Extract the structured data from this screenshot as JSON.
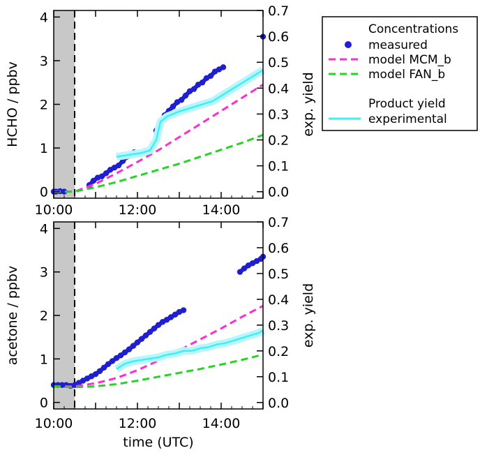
{
  "chart_data": [
    {
      "type": "scatter",
      "panel": "top",
      "ylabel": "HCHO / ppbv",
      "y2label": "exp. yield",
      "xlim": [
        10.0,
        15.0
      ],
      "ylim": [
        -0.15,
        4.15
      ],
      "y2lim": [
        -0.025,
        0.7
      ],
      "x_ticks": [
        10,
        11,
        12,
        13,
        14,
        15
      ],
      "x_tick_labels": [
        "10:00",
        "12:00",
        "14:00"
      ],
      "y_tick_labels": [
        "0",
        "1",
        "2",
        "3",
        "4"
      ],
      "y2_tick_labels": [
        "0.0",
        "0.1",
        "0.2",
        "0.3",
        "0.4",
        "0.5",
        "0.6",
        "0.7"
      ],
      "shaded_region": [
        10.0,
        10.5
      ],
      "dashed_vline": 10.5,
      "series": [
        {
          "name": "measured",
          "style": "points",
          "color": "#1f1fd0",
          "axis": "left",
          "segments": [
            {
              "x": [
                10.0,
                10.05,
                10.15,
                10.25
              ],
              "y": [
                0.0,
                0.0,
                0.01,
                0.0
              ]
            },
            {
              "x": [
                10.85,
                10.95,
                11.05,
                11.15,
                11.25,
                11.35,
                11.45,
                11.55,
                11.65,
                11.75,
                11.85,
                11.92
              ],
              "y": [
                0.15,
                0.25,
                0.32,
                0.35,
                0.42,
                0.5,
                0.55,
                0.6,
                0.7,
                0.8,
                0.85,
                0.9
              ]
            },
            {
              "x": [
                12.45,
                12.55,
                12.65,
                12.75,
                12.85,
                12.95,
                13.05,
                13.15,
                13.25,
                13.35,
                13.45,
                13.55,
                13.65,
                13.75,
                13.85,
                13.95,
                14.05
              ],
              "y": [
                1.4,
                1.55,
                1.75,
                1.85,
                1.95,
                2.05,
                2.1,
                2.2,
                2.3,
                2.35,
                2.45,
                2.5,
                2.6,
                2.65,
                2.75,
                2.8,
                2.85
              ]
            },
            {
              "x": [
                15.0
              ],
              "y": [
                3.55
              ]
            }
          ]
        },
        {
          "name": "model MCM_b",
          "style": "dashed",
          "color": "#ff2cd5",
          "axis": "left",
          "x": [
            10.0,
            10.5,
            11.0,
            11.5,
            12.0,
            12.5,
            13.0,
            13.5,
            14.0,
            14.5,
            15.0
          ],
          "y": [
            0.0,
            0.0,
            0.18,
            0.42,
            0.68,
            0.95,
            1.25,
            1.55,
            1.85,
            2.15,
            2.45
          ]
        },
        {
          "name": "model FAN_b",
          "style": "dashed",
          "color": "#22d622",
          "axis": "left",
          "x": [
            10.0,
            10.5,
            11.0,
            11.5,
            12.0,
            12.5,
            13.0,
            13.5,
            14.0,
            14.5,
            15.0
          ],
          "y": [
            0.0,
            0.0,
            0.1,
            0.22,
            0.36,
            0.5,
            0.64,
            0.8,
            0.96,
            1.12,
            1.3
          ]
        },
        {
          "name": "experimental",
          "style": "line",
          "color": "#3cf0f8",
          "axis": "right",
          "x": [
            11.5,
            11.7,
            11.9,
            12.1,
            12.3,
            12.45,
            12.55,
            12.7,
            12.85,
            13.0,
            13.2,
            13.4,
            13.6,
            13.8,
            14.0,
            14.2,
            14.4,
            14.6,
            14.8,
            15.0
          ],
          "y": [
            0.135,
            0.14,
            0.145,
            0.15,
            0.16,
            0.2,
            0.27,
            0.29,
            0.3,
            0.31,
            0.32,
            0.33,
            0.34,
            0.35,
            0.37,
            0.39,
            0.41,
            0.43,
            0.45,
            0.47
          ]
        }
      ]
    },
    {
      "type": "scatter",
      "panel": "bottom",
      "ylabel": "acetone / ppbv",
      "y2label": "exp. yield",
      "xlabel": "time (UTC)",
      "xlim": [
        10.0,
        15.0
      ],
      "ylim": [
        -0.15,
        4.15
      ],
      "y2lim": [
        -0.025,
        0.7
      ],
      "x_ticks": [
        10,
        11,
        12,
        13,
        14,
        15
      ],
      "x_tick_labels": [
        "10:00",
        "12:00",
        "14:00"
      ],
      "y_tick_labels": [
        "0",
        "1",
        "2",
        "3",
        "4"
      ],
      "y2_tick_labels": [
        "0.0",
        "0.1",
        "0.2",
        "0.3",
        "0.4",
        "0.5",
        "0.6",
        "0.7"
      ],
      "shaded_region": [
        10.0,
        10.5
      ],
      "dashed_vline": 10.5,
      "series": [
        {
          "name": "measured",
          "style": "points",
          "color": "#1f1fd0",
          "axis": "left",
          "segments": [
            {
              "x": [
                10.0,
                10.1,
                10.2,
                10.3,
                10.4,
                10.5,
                10.6,
                10.7,
                10.8,
                10.9,
                11.0,
                11.1,
                11.2,
                11.3,
                11.4,
                11.5,
                11.6,
                11.7,
                11.8,
                11.9,
                12.0,
                12.1,
                12.2,
                12.3,
                12.4,
                12.5,
                12.6,
                12.7,
                12.8,
                12.9,
                13.0,
                13.1
              ],
              "y": [
                0.4,
                0.4,
                0.4,
                0.4,
                0.38,
                0.4,
                0.45,
                0.5,
                0.55,
                0.6,
                0.65,
                0.72,
                0.8,
                0.88,
                0.95,
                1.02,
                1.08,
                1.15,
                1.22,
                1.3,
                1.38,
                1.46,
                1.54,
                1.62,
                1.7,
                1.78,
                1.85,
                1.9,
                1.96,
                2.02,
                2.08,
                2.12
              ]
            },
            {
              "x": [
                14.45,
                14.55,
                14.65,
                14.75,
                14.85,
                14.95,
                15.0
              ],
              "y": [
                3.0,
                3.08,
                3.15,
                3.2,
                3.25,
                3.3,
                3.35
              ]
            }
          ]
        },
        {
          "name": "model MCM_b",
          "style": "dashed",
          "color": "#ff2cd5",
          "axis": "left",
          "x": [
            10.0,
            10.5,
            11.0,
            11.5,
            12.0,
            12.5,
            13.0,
            13.5,
            14.0,
            14.5,
            15.0
          ],
          "y": [
            0.37,
            0.37,
            0.44,
            0.56,
            0.74,
            0.96,
            1.2,
            1.45,
            1.7,
            1.97,
            2.22
          ]
        },
        {
          "name": "model FAN_b",
          "style": "dashed",
          "color": "#22d622",
          "axis": "left",
          "x": [
            10.0,
            10.5,
            11.0,
            11.5,
            12.0,
            12.5,
            13.0,
            13.5,
            14.0,
            14.5,
            15.0
          ],
          "y": [
            0.37,
            0.35,
            0.37,
            0.42,
            0.5,
            0.59,
            0.68,
            0.77,
            0.87,
            0.98,
            1.1
          ]
        },
        {
          "name": "experimental",
          "style": "line",
          "color": "#3cf0f8",
          "axis": "right",
          "x": [
            11.5,
            11.7,
            11.9,
            12.1,
            12.3,
            12.5,
            12.7,
            12.9,
            13.1,
            13.3,
            13.5,
            13.7,
            13.9,
            14.1,
            14.3,
            14.5,
            14.7,
            14.9,
            15.0
          ],
          "y": [
            0.13,
            0.15,
            0.16,
            0.165,
            0.17,
            0.175,
            0.185,
            0.19,
            0.2,
            0.2,
            0.21,
            0.215,
            0.225,
            0.23,
            0.24,
            0.25,
            0.26,
            0.27,
            0.28
          ]
        }
      ]
    }
  ],
  "legend": {
    "concentrations_header": "Concentrations",
    "measured_label": "measured",
    "mcm_label": "model MCM_b",
    "fan_label": "model FAN_b",
    "yield_header": "Product yield",
    "experimental_label": "experimental"
  },
  "colors": {
    "measured": "#1f1fd0",
    "mcm": "#ff2cd5",
    "fan": "#22d622",
    "experimental": "#3cf0f8",
    "experimental_band": "#b9f6fb",
    "shade": "#c8c8c8"
  }
}
